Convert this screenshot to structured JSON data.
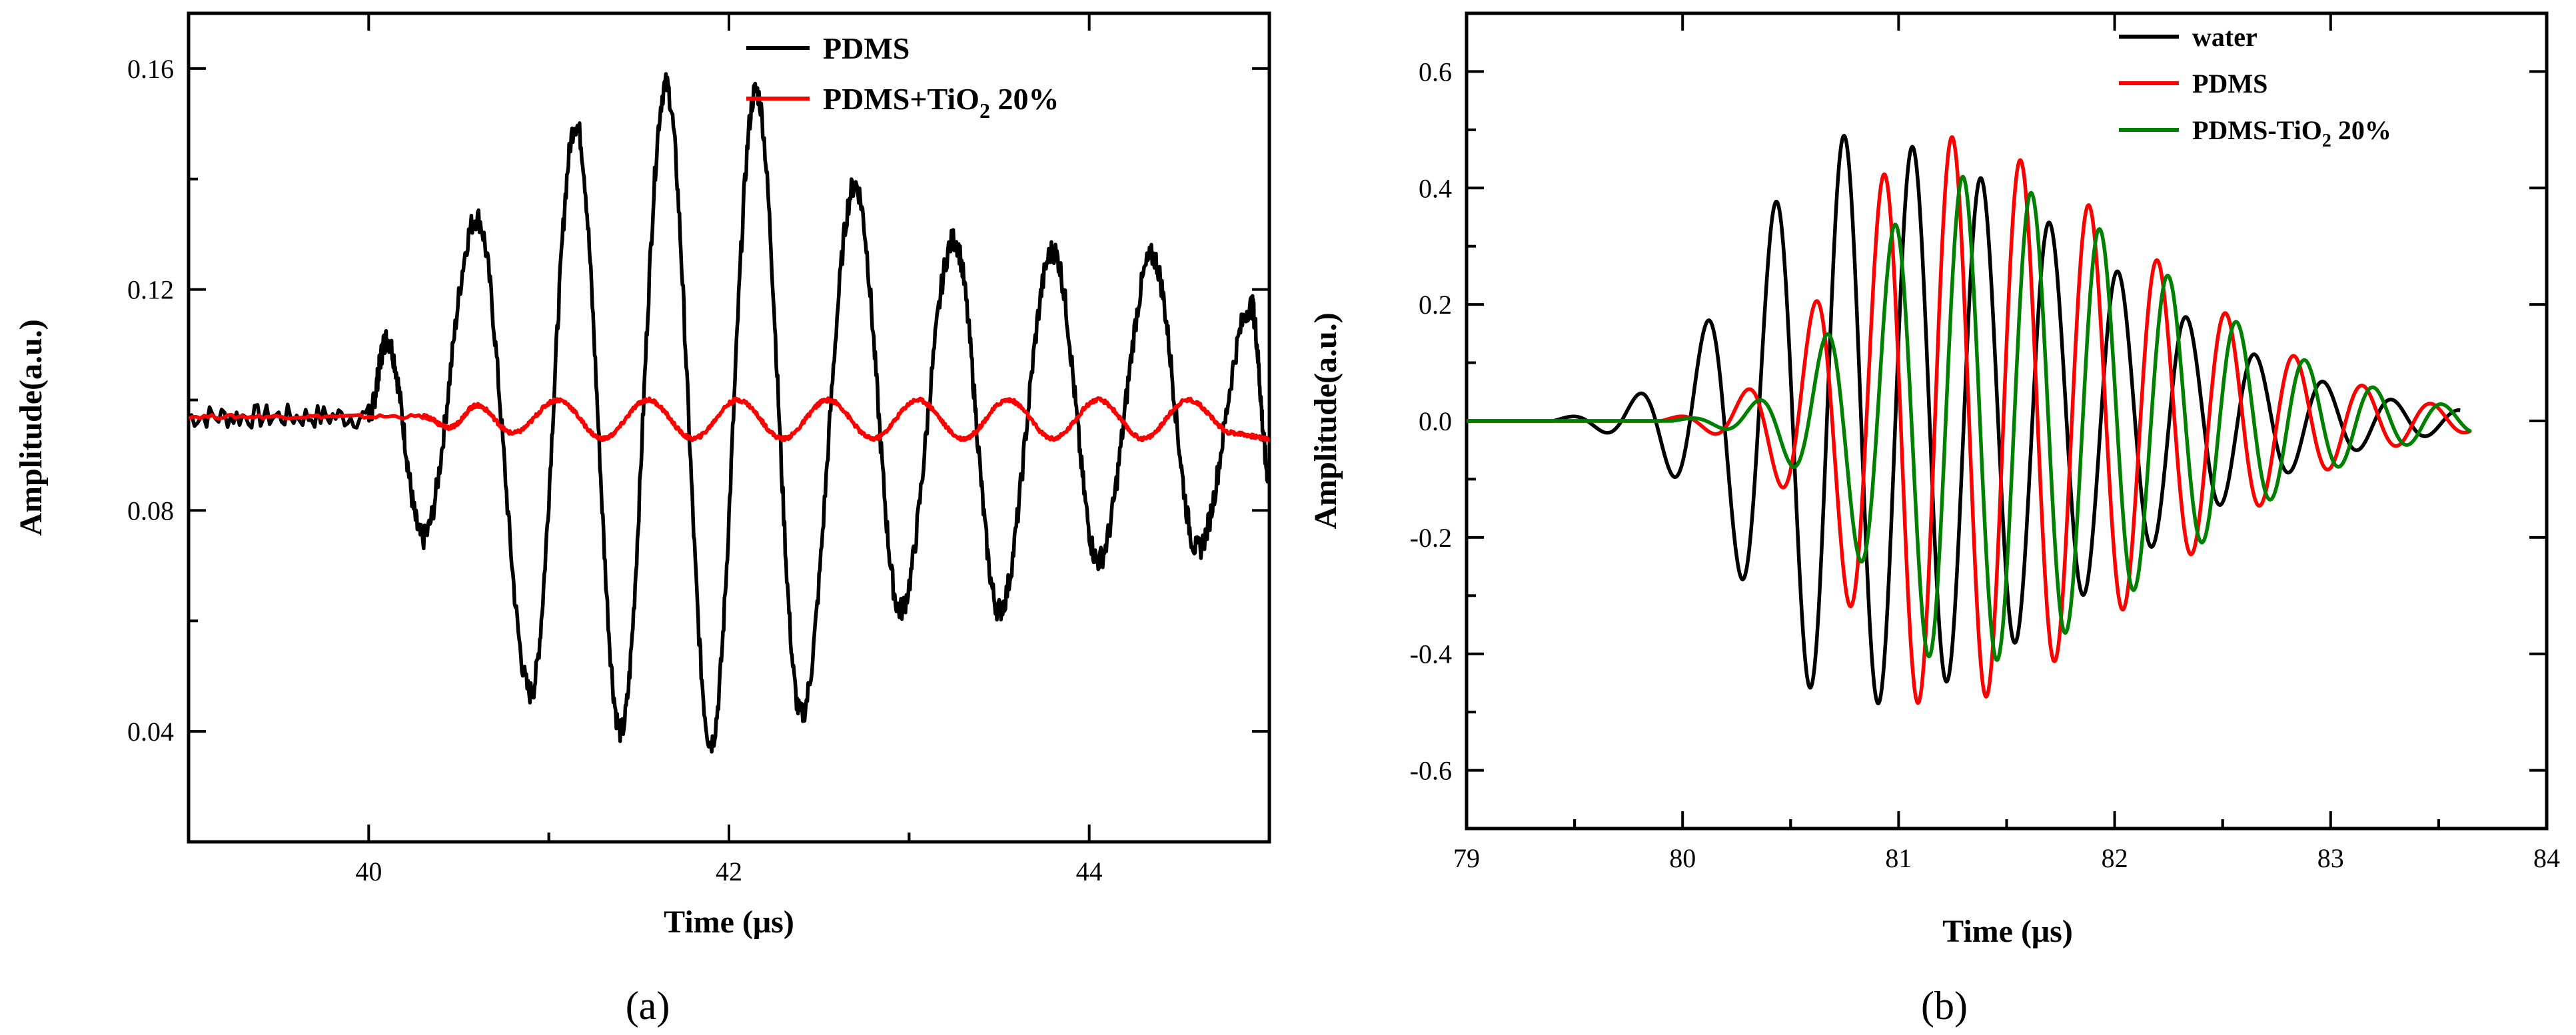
{
  "chart_data": [
    {
      "type": "line",
      "panel": "(a)",
      "xlabel": "Time (μs)",
      "ylabel": "Amplitude(a.u.)",
      "xlim": [
        39.0,
        45.0
      ],
      "ylim": [
        0.02,
        0.17
      ],
      "xticks": [
        40,
        42,
        44
      ],
      "yticks": [
        0.04,
        0.08,
        0.12,
        0.16
      ],
      "xtick_labels": [
        "40",
        "42",
        "44"
      ],
      "ytick_labels": [
        "0.04",
        "0.08",
        "0.12",
        "0.16"
      ],
      "legend_position": "top-right",
      "series": [
        {
          "name": "PDMS",
          "legend_main": "PDMS",
          "legend_sub": "",
          "legend_tail": "",
          "color": "#000000",
          "baseline": 0.097,
          "x": [
            39.0,
            40.0,
            40.1,
            40.3,
            40.6,
            40.9,
            41.15,
            41.4,
            41.65,
            41.9,
            42.15,
            42.4,
            42.7,
            42.95,
            43.25,
            43.5,
            43.8,
            44.05,
            44.35,
            44.6,
            44.9,
            45.0
          ],
          "y": [
            0.097,
            0.097,
            0.111,
            0.075,
            0.133,
            0.047,
            0.15,
            0.04,
            0.157,
            0.038,
            0.156,
            0.043,
            0.139,
            0.062,
            0.129,
            0.062,
            0.127,
            0.071,
            0.126,
            0.073,
            0.117,
            0.086
          ]
        },
        {
          "name": "PDMS+TiO2 20%",
          "legend_main": "PDMS+TiO",
          "legend_sub": "2",
          "legend_tail": " 20%",
          "color": "#ff0000",
          "baseline": 0.097,
          "x": [
            39.0,
            40.3,
            40.45,
            40.6,
            40.8,
            41.05,
            41.3,
            41.55,
            41.8,
            42.05,
            42.3,
            42.55,
            42.8,
            43.05,
            43.3,
            43.55,
            43.8,
            44.05,
            44.3,
            44.55,
            44.8,
            45.0
          ],
          "y": [
            0.097,
            0.097,
            0.095,
            0.099,
            0.094,
            0.1,
            0.093,
            0.1,
            0.093,
            0.1,
            0.093,
            0.1,
            0.093,
            0.1,
            0.093,
            0.1,
            0.093,
            0.1,
            0.093,
            0.1,
            0.094,
            0.093
          ]
        }
      ]
    },
    {
      "type": "line",
      "panel": "(b)",
      "xlabel": "Time (μs)",
      "ylabel": "Amplitude(a.u.)",
      "xlim": [
        79.0,
        84.0
      ],
      "ylim": [
        -0.7,
        0.7
      ],
      "xticks": [
        79,
        80,
        81,
        82,
        83,
        84
      ],
      "yticks": [
        -0.6,
        -0.4,
        -0.2,
        0.0,
        0.2,
        0.4,
        0.6
      ],
      "xtick_labels": [
        "79",
        "80",
        "81",
        "82",
        "83",
        "84"
      ],
      "ytick_labels": [
        "-0.6",
        "-0.4",
        "-0.2",
        "0.0",
        "0.2",
        "0.4",
        "0.6"
      ],
      "legend_position": "top-right",
      "series": [
        {
          "name": "water",
          "legend_main": "water",
          "legend_sub": "",
          "legend_tail": "",
          "color": "#000000",
          "onset": 79.4,
          "end": 83.6,
          "period": 0.317,
          "peak_time": 80.75,
          "peak_amp": 0.49,
          "rise": 0.65,
          "decay": 1.65
        },
        {
          "name": "PDMS",
          "legend_main": "PDMS",
          "legend_sub": "",
          "legend_tail": "",
          "color": "#ff0000",
          "onset": 79.9,
          "end": 83.65,
          "period": 0.317,
          "peak_time": 81.15,
          "peak_amp": 0.49,
          "rise": 0.6,
          "decay": 1.45
        },
        {
          "name": "PDMS-TiO2 20%",
          "legend_main": "PDMS-TiO",
          "legend_sub": "2",
          "legend_tail": " 20%",
          "color": "#008000",
          "onset": 79.95,
          "end": 83.65,
          "period": 0.317,
          "peak_time": 81.25,
          "peak_amp": 0.42,
          "rise": 0.6,
          "decay": 1.45
        }
      ]
    }
  ]
}
